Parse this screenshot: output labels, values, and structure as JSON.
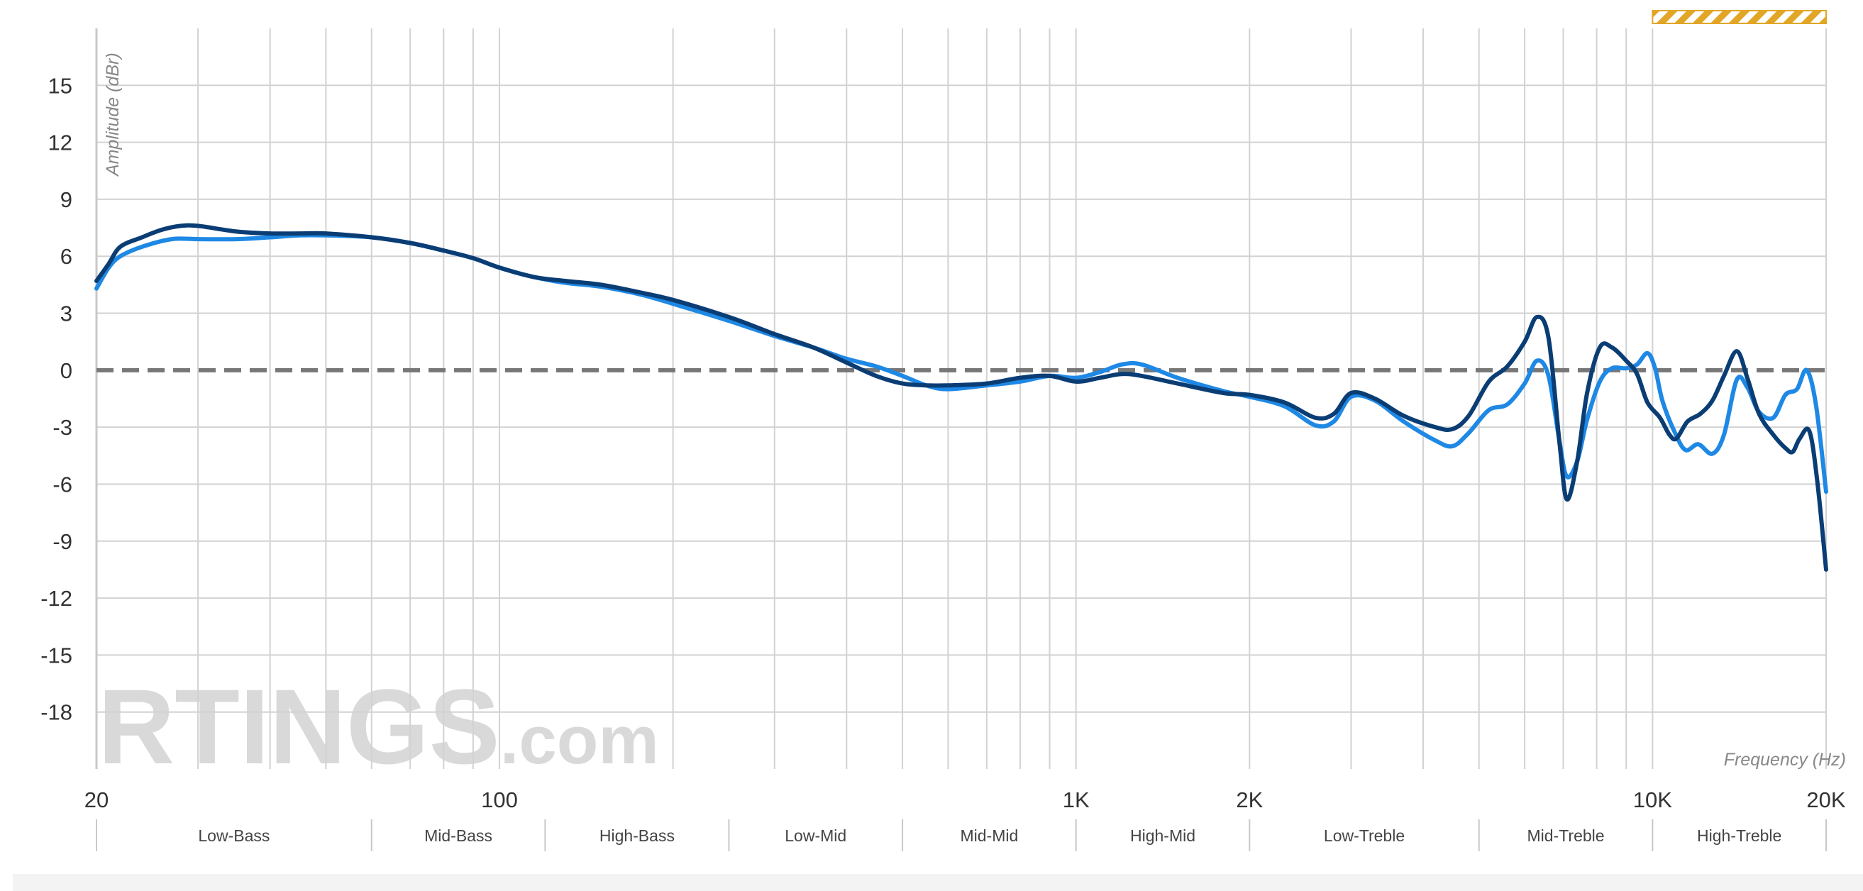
{
  "chart_data": {
    "type": "line",
    "xlabel": "Frequency (Hz)",
    "ylabel": "Amplitude (dBr)",
    "xscale": "log",
    "xlim": [
      20,
      20000
    ],
    "ylim": [
      -21,
      18
    ],
    "grid": true,
    "watermark": "RTINGS.com",
    "x_ticks": [
      {
        "value": 20,
        "label": "20"
      },
      {
        "value": 100,
        "label": "100"
      },
      {
        "value": 1000,
        "label": "1K"
      },
      {
        "value": 2000,
        "label": "2K"
      },
      {
        "value": 10000,
        "label": "10K"
      },
      {
        "value": 20000,
        "label": "20K"
      }
    ],
    "y_ticks": [
      15,
      12,
      9,
      6,
      3,
      0,
      -3,
      -6,
      -9,
      -12,
      -15,
      -18
    ],
    "bands": [
      {
        "label": "Low-Bass",
        "from": 20,
        "to": 60
      },
      {
        "label": "Mid-Bass",
        "from": 60,
        "to": 120
      },
      {
        "label": "High-Bass",
        "from": 120,
        "to": 250
      },
      {
        "label": "Low-Mid",
        "from": 250,
        "to": 500
      },
      {
        "label": "Mid-Mid",
        "from": 500,
        "to": 1000
      },
      {
        "label": "High-Mid",
        "from": 1000,
        "to": 2000
      },
      {
        "label": "Low-Treble",
        "from": 2000,
        "to": 5000
      },
      {
        "label": "Mid-Treble",
        "from": 5000,
        "to": 10000
      },
      {
        "label": "High-Treble",
        "from": 10000,
        "to": 20000
      }
    ],
    "highlight_range": {
      "from": 10000,
      "to": 20000,
      "color": "#e2a626"
    },
    "reference_line": {
      "y": 0,
      "color": "#777777"
    },
    "series": [
      {
        "color": "#1e88e5",
        "points": [
          [
            20,
            4.3
          ],
          [
            21,
            5.4
          ],
          [
            22,
            6.0
          ],
          [
            24,
            6.5
          ],
          [
            27,
            6.9
          ],
          [
            30,
            6.9
          ],
          [
            35,
            6.9
          ],
          [
            40,
            7.0
          ],
          [
            45,
            7.1
          ],
          [
            50,
            7.1
          ],
          [
            60,
            7.0
          ],
          [
            70,
            6.7
          ],
          [
            80,
            6.3
          ],
          [
            90,
            5.9
          ],
          [
            100,
            5.4
          ],
          [
            115,
            4.9
          ],
          [
            130,
            4.6
          ],
          [
            150,
            4.4
          ],
          [
            175,
            4.0
          ],
          [
            200,
            3.5
          ],
          [
            250,
            2.6
          ],
          [
            300,
            1.8
          ],
          [
            350,
            1.2
          ],
          [
            400,
            0.6
          ],
          [
            450,
            0.2
          ],
          [
            500,
            -0.3
          ],
          [
            550,
            -0.8
          ],
          [
            600,
            -1.0
          ],
          [
            700,
            -0.8
          ],
          [
            800,
            -0.6
          ],
          [
            900,
            -0.3
          ],
          [
            1000,
            -0.4
          ],
          [
            1100,
            -0.1
          ],
          [
            1200,
            0.3
          ],
          [
            1300,
            0.3
          ],
          [
            1500,
            -0.4
          ],
          [
            1800,
            -1.1
          ],
          [
            2000,
            -1.4
          ],
          [
            2300,
            -1.9
          ],
          [
            2600,
            -2.9
          ],
          [
            2800,
            -2.7
          ],
          [
            3000,
            -1.4
          ],
          [
            3300,
            -1.6
          ],
          [
            3700,
            -2.7
          ],
          [
            4200,
            -3.7
          ],
          [
            4500,
            -4.0
          ],
          [
            4800,
            -3.3
          ],
          [
            5200,
            -2.1
          ],
          [
            5600,
            -1.8
          ],
          [
            6000,
            -0.7
          ],
          [
            6300,
            0.5
          ],
          [
            6600,
            -0.3
          ],
          [
            6900,
            -3.8
          ],
          [
            7100,
            -5.6
          ],
          [
            7400,
            -4.8
          ],
          [
            7700,
            -2.6
          ],
          [
            8100,
            -0.6
          ],
          [
            8500,
            0.1
          ],
          [
            9000,
            0.1
          ],
          [
            9400,
            0.3
          ],
          [
            9800,
            0.9
          ],
          [
            10100,
            0.1
          ],
          [
            10400,
            -1.6
          ],
          [
            10900,
            -3.2
          ],
          [
            11400,
            -4.2
          ],
          [
            12000,
            -3.9
          ],
          [
            12700,
            -4.4
          ],
          [
            13300,
            -3.4
          ],
          [
            14000,
            -0.5
          ],
          [
            14600,
            -0.9
          ],
          [
            15300,
            -2.2
          ],
          [
            16200,
            -2.5
          ],
          [
            17000,
            -1.3
          ],
          [
            17800,
            -1.0
          ],
          [
            18500,
            0.0
          ],
          [
            19200,
            -1.8
          ],
          [
            20000,
            -6.4
          ]
        ]
      },
      {
        "color": "#0a3d74",
        "points": [
          [
            20,
            4.7
          ],
          [
            21,
            5.6
          ],
          [
            22,
            6.5
          ],
          [
            24,
            7.0
          ],
          [
            26,
            7.4
          ],
          [
            28,
            7.6
          ],
          [
            30,
            7.6
          ],
          [
            35,
            7.3
          ],
          [
            40,
            7.2
          ],
          [
            45,
            7.2
          ],
          [
            50,
            7.2
          ],
          [
            60,
            7.0
          ],
          [
            70,
            6.7
          ],
          [
            80,
            6.3
          ],
          [
            90,
            5.9
          ],
          [
            100,
            5.4
          ],
          [
            115,
            4.9
          ],
          [
            130,
            4.7
          ],
          [
            150,
            4.5
          ],
          [
            175,
            4.1
          ],
          [
            200,
            3.7
          ],
          [
            250,
            2.8
          ],
          [
            300,
            1.9
          ],
          [
            350,
            1.2
          ],
          [
            400,
            0.4
          ],
          [
            450,
            -0.3
          ],
          [
            500,
            -0.7
          ],
          [
            550,
            -0.8
          ],
          [
            600,
            -0.8
          ],
          [
            700,
            -0.7
          ],
          [
            800,
            -0.4
          ],
          [
            900,
            -0.3
          ],
          [
            1000,
            -0.6
          ],
          [
            1100,
            -0.4
          ],
          [
            1200,
            -0.2
          ],
          [
            1300,
            -0.3
          ],
          [
            1500,
            -0.7
          ],
          [
            1800,
            -1.2
          ],
          [
            2000,
            -1.3
          ],
          [
            2300,
            -1.7
          ],
          [
            2600,
            -2.5
          ],
          [
            2800,
            -2.3
          ],
          [
            3000,
            -1.2
          ],
          [
            3300,
            -1.5
          ],
          [
            3700,
            -2.4
          ],
          [
            4200,
            -3.0
          ],
          [
            4500,
            -3.1
          ],
          [
            4800,
            -2.4
          ],
          [
            5200,
            -0.6
          ],
          [
            5600,
            0.2
          ],
          [
            6000,
            1.5
          ],
          [
            6300,
            2.8
          ],
          [
            6600,
            1.7
          ],
          [
            6900,
            -3.9
          ],
          [
            7100,
            -6.8
          ],
          [
            7400,
            -4.8
          ],
          [
            7700,
            -1.2
          ],
          [
            8100,
            1.2
          ],
          [
            8500,
            1.2
          ],
          [
            9000,
            0.5
          ],
          [
            9400,
            -0.2
          ],
          [
            9800,
            -1.7
          ],
          [
            10300,
            -2.5
          ],
          [
            10700,
            -3.4
          ],
          [
            11000,
            -3.6
          ],
          [
            11500,
            -2.7
          ],
          [
            12100,
            -2.3
          ],
          [
            12700,
            -1.6
          ],
          [
            13300,
            -0.3
          ],
          [
            14000,
            1.0
          ],
          [
            14600,
            -0.4
          ],
          [
            15300,
            -2.3
          ],
          [
            16200,
            -3.4
          ],
          [
            17000,
            -4.1
          ],
          [
            17500,
            -4.3
          ],
          [
            18000,
            -3.6
          ],
          [
            18700,
            -3.2
          ],
          [
            19300,
            -5.8
          ],
          [
            20000,
            -10.5
          ]
        ]
      }
    ]
  },
  "labels": {
    "xlabel": "Frequency (Hz)",
    "ylabel": "Amplitude (dBr)",
    "watermark": "RTINGS.com"
  }
}
